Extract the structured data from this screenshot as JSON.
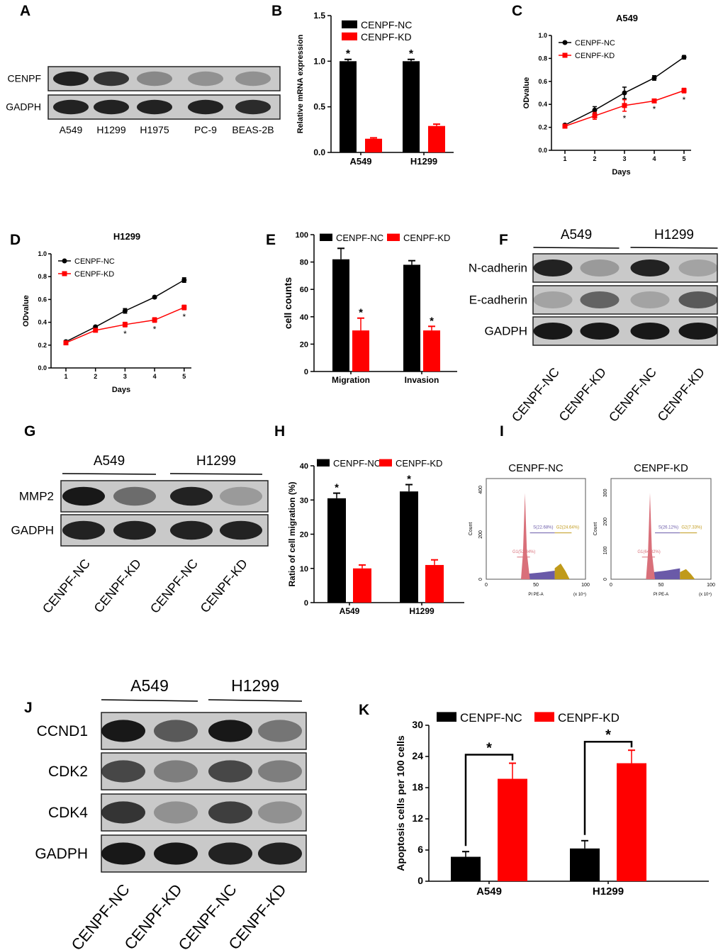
{
  "panel_letters": [
    "A",
    "B",
    "C",
    "D",
    "E",
    "F",
    "G",
    "H",
    "I",
    "J",
    "K"
  ],
  "colors": {
    "nc": "#000000",
    "kd": "#ff0000",
    "g1": "#d9707a",
    "s": "#6a5aa8",
    "g2": "#c09a1a"
  },
  "chart_data": [
    {
      "id": "A",
      "type": "blot",
      "rows": [
        "CENPF",
        "GADPH"
      ],
      "lanes": [
        "A549",
        "H1299",
        "H1975",
        "PC-9",
        "BEAS-2B"
      ],
      "band_intensity": [
        [
          0.9,
          0.8,
          0.35,
          0.3,
          0.3
        ],
        [
          0.9,
          0.9,
          0.9,
          0.9,
          0.85
        ]
      ]
    },
    {
      "id": "B",
      "type": "bar",
      "categories": [
        "A549",
        "H1299"
      ],
      "series": [
        {
          "name": "CENPF-NC",
          "values": [
            1.0,
            1.0
          ],
          "err": [
            0.02,
            0.02
          ]
        },
        {
          "name": "CENPF-KD",
          "values": [
            0.15,
            0.29
          ],
          "err": [
            0.01,
            0.02
          ]
        }
      ],
      "ylabel": "Relative mRNA expression",
      "ylim": [
        0,
        1.5
      ],
      "yticks": [
        "0.0",
        "0.5",
        "1.0",
        "1.5"
      ],
      "sig": [
        "*",
        "*"
      ],
      "legend": "top-right"
    },
    {
      "id": "C",
      "type": "line",
      "title": "A549",
      "x": [
        1,
        2,
        3,
        4,
        5
      ],
      "xticks": [
        "1",
        "2",
        "3",
        "4",
        "5"
      ],
      "series": [
        {
          "name": "CENPF-NC",
          "values": [
            0.22,
            0.35,
            0.5,
            0.63,
            0.81
          ],
          "err": [
            0.01,
            0.03,
            0.05,
            0.02,
            0.015
          ]
        },
        {
          "name": "CENPF-KD",
          "values": [
            0.21,
            0.3,
            0.39,
            0.43,
            0.52
          ],
          "err": [
            0.01,
            0.03,
            0.05,
            0.01,
            0.02
          ]
        }
      ],
      "xlabel": "Days",
      "ylabel": "ODvalue",
      "ylim": [
        0,
        1.0
      ],
      "yticks": [
        "0.0",
        "0.2",
        "0.4",
        "0.6",
        "0.8",
        "1.0"
      ],
      "sig_days": [
        3,
        4,
        5
      ],
      "sig": "*",
      "legend": "top-left"
    },
    {
      "id": "D",
      "type": "line",
      "title": "H1299",
      "x": [
        1,
        2,
        3,
        4,
        5
      ],
      "xticks": [
        "1",
        "2",
        "3",
        "4",
        "5"
      ],
      "series": [
        {
          "name": "CENPF-NC",
          "values": [
            0.23,
            0.36,
            0.5,
            0.62,
            0.77
          ],
          "err": [
            0.01,
            0.01,
            0.02,
            0.01,
            0.02
          ]
        },
        {
          "name": "CENPF-KD",
          "values": [
            0.22,
            0.33,
            0.38,
            0.42,
            0.53
          ],
          "err": [
            0.01,
            0.01,
            0.02,
            0.02,
            0.02
          ]
        }
      ],
      "xlabel": "Days",
      "ylabel": "ODvalue",
      "ylim": [
        0,
        1.0
      ],
      "yticks": [
        "0.0",
        "0.2",
        "0.4",
        "0.6",
        "0.8",
        "1.0"
      ],
      "sig_days": [
        3,
        4,
        5
      ],
      "sig": "*",
      "legend": "top-left"
    },
    {
      "id": "E",
      "type": "bar",
      "categories": [
        "Migration",
        "Invasion"
      ],
      "series": [
        {
          "name": "CENPF-NC",
          "values": [
            82,
            78
          ],
          "err": [
            8,
            3
          ]
        },
        {
          "name": "CENPF-KD",
          "values": [
            30,
            30
          ],
          "err": [
            9,
            3
          ]
        }
      ],
      "ylabel": "cell counts",
      "ylim": [
        0,
        100
      ],
      "yticks": [
        "0",
        "20",
        "40",
        "60",
        "80",
        "100"
      ],
      "sig": [
        "*",
        "*"
      ],
      "legend": "top"
    },
    {
      "id": "F",
      "type": "blot",
      "groups": [
        "A549",
        "H1299"
      ],
      "rows": [
        "N-cadherin",
        "E-cadherin",
        "GADPH"
      ],
      "lanes": [
        "CENPF-NC",
        "CENPF-KD",
        "CENPF-NC",
        "CENPF-KD"
      ],
      "band_intensity": [
        [
          0.9,
          0.25,
          0.9,
          0.2
        ],
        [
          0.2,
          0.55,
          0.2,
          0.6
        ],
        [
          0.95,
          0.95,
          0.95,
          0.95
        ]
      ]
    },
    {
      "id": "G",
      "type": "blot",
      "groups": [
        "A549",
        "H1299"
      ],
      "rows": [
        "MMP2",
        "GADPH"
      ],
      "lanes": [
        "CENPF-NC",
        "CENPF-KD",
        "CENPF-NC",
        "CENPF-KD"
      ],
      "band_intensity": [
        [
          0.95,
          0.5,
          0.9,
          0.25
        ],
        [
          0.9,
          0.9,
          0.9,
          0.9
        ]
      ]
    },
    {
      "id": "H",
      "type": "bar",
      "categories": [
        "A549",
        "H1299"
      ],
      "series": [
        {
          "name": "CENPF-NC",
          "values": [
            30.5,
            32.5
          ],
          "err": [
            1.5,
            2
          ]
        },
        {
          "name": "CENPF-KD",
          "values": [
            10,
            11
          ],
          "err": [
            1,
            1.5
          ]
        }
      ],
      "ylabel": "Ratio of cell migration (%)",
      "ylim": [
        0,
        40
      ],
      "yticks": [
        "0",
        "10",
        "20",
        "30",
        "40"
      ],
      "sig": [
        "*",
        "*"
      ],
      "legend": "top"
    },
    {
      "id": "I",
      "type": "histogram",
      "xlabel": "PI PE-A",
      "ylabel": "Count",
      "xunit": "(x 10⁴)",
      "xticks": [
        "0",
        "50",
        "100"
      ],
      "plots": [
        {
          "title": "CENPF-NC",
          "yticks": [
            "0",
            "200",
            "400"
          ],
          "ymax": 450,
          "g1_peak": 385,
          "g2_peak": 70,
          "g1": "G1(52.34%)",
          "s": "S(22.68%)",
          "g2": "G2(24.64%)"
        },
        {
          "title": "CENPF-KD",
          "yticks": [
            "0",
            "100",
            "200",
            "300"
          ],
          "ymax": 350,
          "g1_peak": 300,
          "g2_peak": 35,
          "g1": "G1(64.32%)",
          "s": "S(26.12%)",
          "g2": "G2(7.33%)"
        }
      ]
    },
    {
      "id": "J",
      "type": "blot",
      "groups": [
        "A549",
        "H1299"
      ],
      "rows": [
        "CCND1",
        "CDK2",
        "CDK4",
        "GADPH"
      ],
      "lanes": [
        "CENPF-NC",
        "CENPF-KD",
        "CENPF-NC",
        "CENPF-KD"
      ],
      "band_intensity": [
        [
          0.95,
          0.6,
          0.95,
          0.45
        ],
        [
          0.7,
          0.4,
          0.7,
          0.4
        ],
        [
          0.8,
          0.3,
          0.75,
          0.3
        ],
        [
          0.95,
          0.95,
          0.9,
          0.9
        ]
      ]
    },
    {
      "id": "K",
      "type": "bar",
      "categories": [
        "A549",
        "H1299"
      ],
      "series": [
        {
          "name": "CENPF-NC",
          "values": [
            4.7,
            6.3
          ],
          "err": [
            1,
            1.5
          ]
        },
        {
          "name": "CENPF-KD",
          "values": [
            19.7,
            22.7
          ],
          "err": [
            3,
            2.5
          ]
        }
      ],
      "ylabel": "Apoptosis cells per 100 cells",
      "ylim": [
        0,
        30
      ],
      "yticks": [
        "0",
        "6",
        "12",
        "18",
        "24",
        "30"
      ],
      "sig": [
        "*",
        "*"
      ],
      "legend": "top"
    }
  ]
}
